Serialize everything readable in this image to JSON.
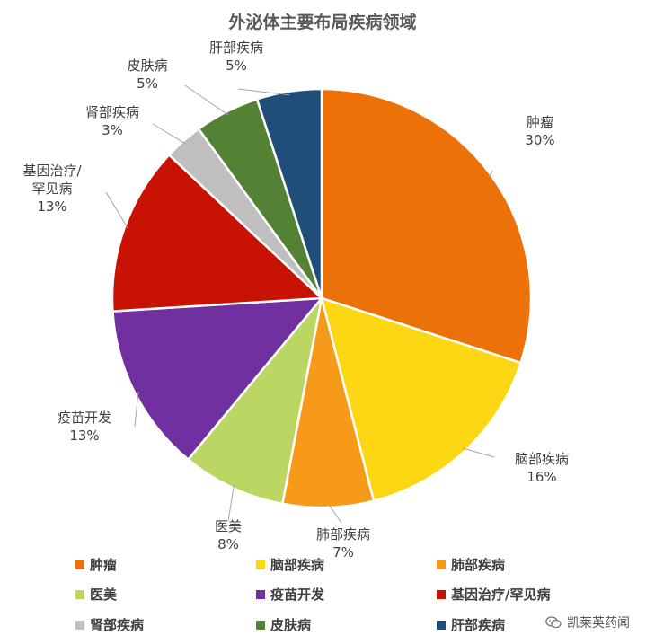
{
  "chart_data": {
    "type": "pie",
    "title": "外泌体主要布局疾病领域",
    "legend_position": "bottom",
    "slices": [
      {
        "name": "肿瘤",
        "label_lines": [
          "肿瘤"
        ],
        "value": 30,
        "value_label": "30%",
        "color": "#ED7109"
      },
      {
        "name": "脑部疾病",
        "label_lines": [
          "脑部疾病"
        ],
        "value": 16,
        "value_label": "16%",
        "color": "#FDD714"
      },
      {
        "name": "肺部疾病",
        "label_lines": [
          "肺部疾病"
        ],
        "value": 7,
        "value_label": "7%",
        "color": "#F79A19"
      },
      {
        "name": "医美",
        "label_lines": [
          "医美"
        ],
        "value": 8,
        "value_label": "8%",
        "color": "#BCD663"
      },
      {
        "name": "疫苗开发",
        "label_lines": [
          "疫苗开发"
        ],
        "value": 13,
        "value_label": "13%",
        "color": "#7030A0"
      },
      {
        "name": "基因治疗/罕见病",
        "label_lines": [
          "基因治疗/",
          "罕见病"
        ],
        "value": 13,
        "value_label": "13%",
        "color": "#C81304"
      },
      {
        "name": "肾部疾病",
        "label_lines": [
          "肾部疾病"
        ],
        "value": 3,
        "value_label": "3%",
        "color": "#BFBFBF"
      },
      {
        "name": "皮肤病",
        "label_lines": [
          "皮肤病"
        ],
        "value": 5,
        "value_label": "5%",
        "color": "#548235"
      },
      {
        "name": "肝部疾病",
        "label_lines": [
          "肝部疾病"
        ],
        "value": 5,
        "value_label": "5%",
        "color": "#1F4E79"
      }
    ]
  },
  "watermark": {
    "text": "凯莱英药闻",
    "icon": "wechat-icon"
  }
}
